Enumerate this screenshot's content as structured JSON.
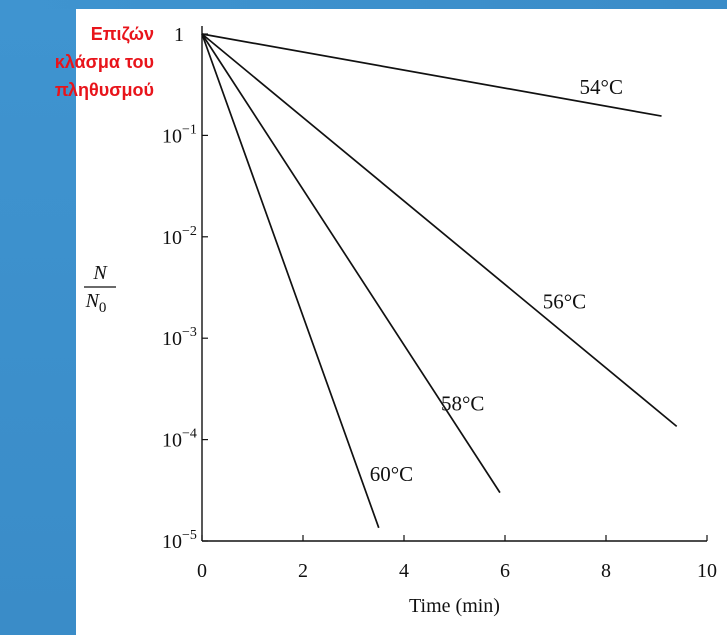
{
  "colors": {
    "band": "#3d90cc",
    "annotation": "#e8141b",
    "ink": "#111111"
  },
  "annotation": {
    "lines": [
      "Επιζών",
      "κλάσμα του",
      "πληθυσμού"
    ]
  },
  "chart_data": {
    "type": "line",
    "x_scale": "linear",
    "y_scale": "log",
    "xlabel": "Time (min)",
    "ylabel_num": "N",
    "ylabel_den": "N",
    "ylabel_den_sub": "0",
    "xlim": [
      0,
      10
    ],
    "ylim": [
      1e-05,
      1
    ],
    "x_ticks": [
      "0",
      "2",
      "4",
      "6",
      "8",
      "10"
    ],
    "x_tick_values": [
      0,
      2,
      4,
      6,
      8,
      10
    ],
    "y_ticks": [
      {
        "value": 1,
        "base": "1",
        "exp": ""
      },
      {
        "value": 0.1,
        "base": "10",
        "exp": "−1"
      },
      {
        "value": 0.01,
        "base": "10",
        "exp": "−2"
      },
      {
        "value": 0.001,
        "base": "10",
        "exp": "−3"
      },
      {
        "value": 0.0001,
        "base": "10",
        "exp": "−4"
      },
      {
        "value": 1e-05,
        "base": "10",
        "exp": "−5"
      }
    ],
    "grid": false,
    "series": [
      {
        "name": "54°C",
        "x": [
          0,
          9.1
        ],
        "y": [
          1,
          0.155
        ]
      },
      {
        "name": "56°C",
        "x": [
          0,
          9.4
        ],
        "y": [
          1,
          0.000135
        ]
      },
      {
        "name": "58°C",
        "x": [
          0,
          5.9
        ],
        "y": [
          1,
          3e-05
        ]
      },
      {
        "name": "60°C",
        "x": [
          0,
          3.5
        ],
        "y": [
          1,
          1.35e-05
        ]
      }
    ]
  }
}
